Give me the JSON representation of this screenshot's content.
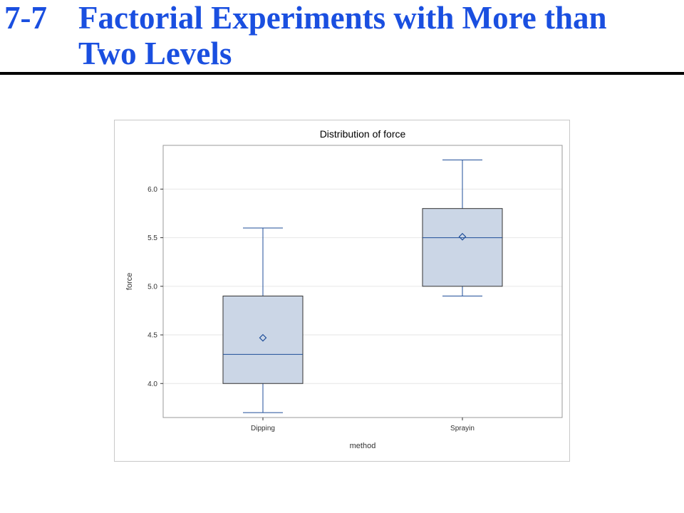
{
  "slide": {
    "number": "7-7",
    "title_line1": "Factorial Experiments with More than",
    "title_line2": "Two Levels"
  },
  "colors": {
    "title": "#1a4fe0",
    "box_fill": "#cbd6e6",
    "box_line": "#1f4e99",
    "grid": "#e6e6e6",
    "axis_frame": "#9a9a9a"
  },
  "chart_data": {
    "type": "box",
    "title": "Distribution of force",
    "xlabel": "method",
    "ylabel": "force",
    "ylim": [
      3.65,
      6.45
    ],
    "yticks": [
      4.0,
      4.5,
      5.0,
      5.5,
      6.0
    ],
    "ytick_labels": [
      "4.0",
      "4.5",
      "5.0",
      "5.5",
      "6.0"
    ],
    "grid": true,
    "categories": [
      "Dipping",
      "Sprayin"
    ],
    "boxes": [
      {
        "category": "Dipping",
        "min": 3.7,
        "q1": 4.0,
        "median": 4.3,
        "q3": 4.9,
        "max": 5.6,
        "mean": 4.47
      },
      {
        "category": "Sprayin",
        "min": 4.9,
        "q1": 5.0,
        "median": 5.5,
        "q3": 5.8,
        "max": 6.3,
        "mean": 5.51
      }
    ]
  }
}
